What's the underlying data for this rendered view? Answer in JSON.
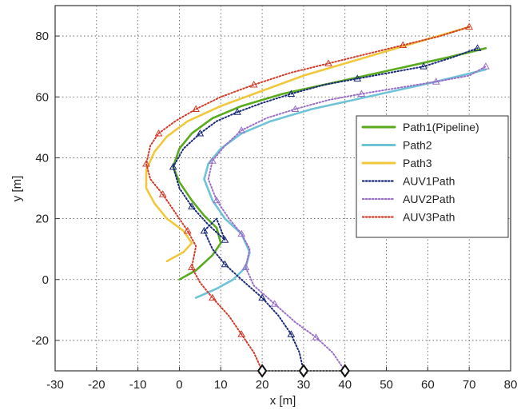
{
  "chart_data": {
    "type": "line",
    "xlabel": "x [m]",
    "ylabel": "y [m]",
    "xlim": [
      -30,
      80
    ],
    "ylim": [
      -30,
      90
    ],
    "xticks": [
      -30,
      -20,
      -10,
      0,
      10,
      20,
      30,
      40,
      50,
      60,
      70,
      80
    ],
    "yticks": [
      -20,
      0,
      20,
      40,
      60,
      80
    ],
    "xtick_labels": [
      "-30",
      "-20",
      "-10",
      "0",
      "10",
      "20",
      "30",
      "40",
      "50",
      "60",
      "70",
      "80"
    ],
    "ytick_labels": [
      "-20",
      "0",
      "20",
      "40",
      "60",
      "80"
    ],
    "grid": true,
    "legend_position": "right",
    "series": [
      {
        "name": "Path1(Pipeline)",
        "color": "#5aaa1e",
        "style": "solid",
        "x": [
          0,
          4,
          8,
          10,
          9,
          6,
          3,
          0,
          -1.5,
          0,
          3,
          8,
          15,
          25,
          35,
          45,
          55,
          65,
          74
        ],
        "y": [
          0,
          3,
          8,
          12,
          17,
          21,
          26,
          32,
          37,
          43,
          48,
          53,
          57,
          61,
          64,
          67,
          70,
          73,
          76
        ]
      },
      {
        "name": "Path2",
        "color": "#6fc3d6",
        "style": "solid",
        "x": [
          4,
          9,
          13,
          16,
          17,
          15,
          11,
          8,
          6,
          7,
          10,
          15,
          22,
          32,
          42,
          52,
          62,
          74
        ],
        "y": [
          -6,
          -3,
          0,
          4,
          9,
          15,
          20,
          26,
          33,
          38,
          43,
          48,
          52,
          56,
          59,
          62,
          65,
          69
        ]
      },
      {
        "name": "Path3",
        "color": "#f0c83c",
        "style": "solid",
        "x": [
          -3,
          1,
          3,
          1,
          -3,
          -6,
          -8,
          -8,
          -6,
          -3,
          2,
          10,
          20,
          30,
          40,
          50,
          60,
          70
        ],
        "y": [
          6,
          9,
          12,
          16,
          20,
          25,
          30,
          36,
          42,
          47,
          52,
          57,
          62,
          67,
          71,
          75,
          79,
          83
        ]
      },
      {
        "name": "AUV1Path",
        "color": "#1b2a78",
        "style": "dotted",
        "x": [
          30,
          29,
          27,
          24,
          20,
          15,
          11,
          8,
          6,
          9,
          11,
          7,
          3,
          0,
          -1.5,
          1,
          5,
          9,
          14,
          20,
          27,
          35,
          43,
          51,
          59,
          66,
          72
        ],
        "y": [
          -30,
          -24,
          -18,
          -12,
          -6,
          0,
          5,
          10,
          16,
          20,
          13,
          18,
          24,
          30,
          37,
          43,
          48,
          52,
          55,
          58,
          61,
          64,
          66,
          68,
          70,
          73,
          76
        ]
      },
      {
        "name": "AUV2Path",
        "color": "#9a6fc8",
        "style": "dotted",
        "x": [
          40,
          37,
          33,
          28,
          23,
          18,
          16,
          17,
          15,
          12,
          9,
          7,
          8,
          11,
          15,
          21,
          28,
          36,
          44,
          53,
          62,
          70,
          74
        ],
        "y": [
          -30,
          -24,
          -19,
          -14,
          -8,
          -2,
          4,
          10,
          15,
          20,
          26,
          33,
          39,
          44,
          49,
          53,
          56,
          59,
          61,
          63,
          65,
          67,
          70
        ]
      },
      {
        "name": "AUV3Path",
        "color": "#d23c2a",
        "style": "dotted",
        "x": [
          20,
          18,
          15,
          12,
          8,
          5,
          3,
          4,
          2,
          -1,
          -4,
          -7,
          -8,
          -7,
          -5,
          -1,
          4,
          10,
          18,
          27,
          36,
          45,
          54,
          63,
          70
        ],
        "y": [
          -30,
          -24,
          -18,
          -12,
          -6,
          -1,
          4,
          11,
          16,
          22,
          28,
          33,
          38,
          44,
          48,
          52,
          56,
          60,
          64,
          68,
          71,
          74,
          77,
          80,
          83
        ]
      }
    ],
    "start_points": {
      "x": [
        20,
        30,
        40
      ],
      "y": [
        -30,
        -30,
        -30
      ]
    }
  }
}
